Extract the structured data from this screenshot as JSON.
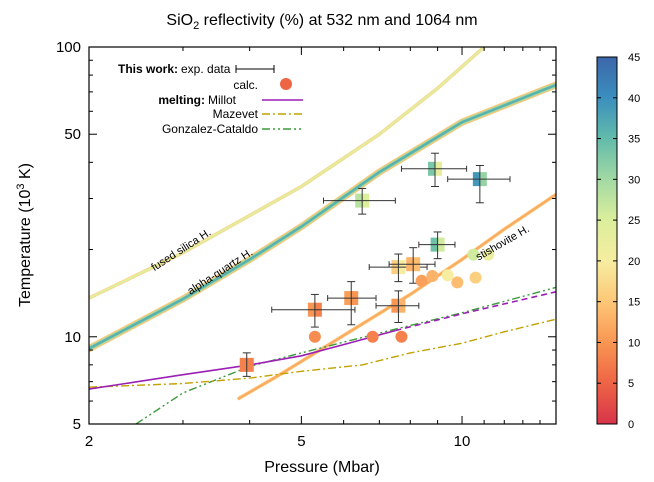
{
  "chart_data": {
    "type": "scatter",
    "title_parts": {
      "pre": "SiO",
      "sub": "2",
      "post": " reflectivity (%) at 532 nm and 1064 nm"
    },
    "xlabel": "Pressure (Mbar)",
    "ylabel_parts": {
      "pre": "Temperature (10",
      "sup": "3",
      "post": " K)"
    },
    "x_scale": "log",
    "y_scale": "log",
    "xlim": [
      2,
      15
    ],
    "ylim": [
      5,
      100
    ],
    "x_ticks": [
      2,
      5,
      10
    ],
    "x_tick_labels": [
      "2",
      "5",
      "10"
    ],
    "y_ticks": [
      5,
      10,
      50,
      100
    ],
    "y_tick_labels": [
      "5",
      "10",
      "50",
      "100"
    ],
    "colorbar": {
      "min": 0,
      "max": 45,
      "ticks": [
        0,
        5,
        10,
        15,
        20,
        25,
        30,
        35,
        40,
        45
      ],
      "tick_labels": [
        "0",
        "5",
        "10",
        "15",
        "20",
        "25",
        "30",
        "35",
        "40",
        "45"
      ],
      "stops": [
        "#d7344a",
        "#ee6445",
        "#f99653",
        "#fdc777",
        "#f6eda0",
        "#dbef9c",
        "#a2d9a4",
        "#62bbab",
        "#3b8fbe",
        "#3c67aa"
      ]
    },
    "legend": {
      "this_work": "This work:",
      "exp": "exp. data",
      "calc": "calc.",
      "melting": "melting:",
      "millot": "Millot",
      "mazevet": "Mazevet",
      "gonzalez": "Gonzalez-Cataldo",
      "placement": "top-left"
    },
    "hugoniots": [
      {
        "label": "fused silica H.",
        "color_value": 24,
        "points": [
          [
            2,
            13.6
          ],
          [
            3,
            19.5
          ],
          [
            5,
            33
          ],
          [
            7,
            50
          ],
          [
            9,
            72
          ],
          [
            11,
            100
          ]
        ]
      },
      {
        "label": "alpha-quartz H.",
        "color_value": 36,
        "points": [
          [
            2,
            9.1
          ],
          [
            3,
            13.5
          ],
          [
            4,
            18.5
          ],
          [
            5,
            24
          ],
          [
            7,
            37
          ],
          [
            10,
            55
          ],
          [
            15,
            74
          ]
        ]
      },
      {
        "label": "stishovite H.",
        "color_value": 12,
        "points": [
          [
            3.8,
            6.1
          ],
          [
            4.5,
            7.3
          ],
          [
            6,
            10.1
          ],
          [
            8,
            14
          ],
          [
            10,
            18.5
          ],
          [
            12,
            23.5
          ],
          [
            15,
            31
          ]
        ]
      }
    ],
    "melting_curves": {
      "millot": {
        "color": "#9b1fb5",
        "points": [
          [
            2,
            6.6
          ],
          [
            3,
            7.4
          ],
          [
            4,
            8.0
          ],
          [
            5,
            8.6
          ],
          [
            6,
            9.4
          ],
          [
            7.5,
            10.5
          ],
          [
            10,
            12.0
          ],
          [
            15,
            14.3
          ]
        ]
      },
      "mazevet": {
        "color": "#c2a100",
        "points": [
          [
            2,
            6.7
          ],
          [
            3,
            6.9
          ],
          [
            4,
            7.2
          ],
          [
            5,
            7.6
          ],
          [
            6.5,
            8.0
          ],
          [
            8,
            8.8
          ],
          [
            10,
            9.5
          ],
          [
            12,
            10.4
          ],
          [
            15,
            11.5
          ]
        ]
      },
      "gonzalez": {
        "color": "#3b9a3b",
        "points": [
          [
            2.45,
            5
          ],
          [
            3,
            6.4
          ],
          [
            4,
            7.9
          ],
          [
            5,
            8.8
          ],
          [
            7,
            10.3
          ],
          [
            10,
            12.1
          ],
          [
            15,
            14.8
          ]
        ]
      }
    },
    "exp_data": [
      {
        "p": 3.95,
        "t": 8.0,
        "xerr": [
          3.95,
          3.95
        ],
        "yerr": [
          7.3,
          8.8
        ],
        "r532": 8,
        "r1064": 8
      },
      {
        "p": 5.3,
        "t": 12.4,
        "xerr": [
          4.4,
          6.3
        ],
        "yerr": [
          10.8,
          14.0
        ],
        "r532": 10,
        "r1064": 8
      },
      {
        "p": 6.2,
        "t": 13.6,
        "xerr": [
          5.6,
          6.9
        ],
        "yerr": [
          11.0,
          15.5
        ],
        "r532": 11,
        "r1064": 10
      },
      {
        "p": 6.5,
        "t": 29.5,
        "xerr": [
          5.5,
          7.5
        ],
        "yerr": [
          26.5,
          32.5
        ],
        "r532": 28,
        "r1064": 25
      },
      {
        "p": 7.6,
        "t": 12.8,
        "xerr": [
          6.9,
          8.3
        ],
        "yerr": [
          11.2,
          14.4
        ],
        "r532": 10,
        "r1064": 13
      },
      {
        "p": 7.6,
        "t": 17.4,
        "xerr": [
          6.7,
          8.6
        ],
        "yerr": [
          15.5,
          19.3
        ],
        "r532": 16,
        "r1064": 20
      },
      {
        "p": 8.1,
        "t": 17.8,
        "xerr": [
          7.3,
          8.9
        ],
        "yerr": [
          15.3,
          20.3
        ],
        "r532": 13,
        "r1064": 14
      },
      {
        "p": 9.0,
        "t": 20.8,
        "xerr": [
          8.3,
          9.7
        ],
        "yerr": [
          18.6,
          23.0
        ],
        "r532": 34,
        "r1064": 26
      },
      {
        "p": 8.9,
        "t": 38.0,
        "xerr": [
          7.7,
          10.2
        ],
        "yerr": [
          33.0,
          43.0
        ],
        "r532": 33,
        "r1064": 23
      },
      {
        "p": 10.8,
        "t": 35.0,
        "xerr": [
          9.4,
          12.3
        ],
        "yerr": [
          29.0,
          39.0
        ],
        "r532": 39,
        "r1064": 31
      }
    ],
    "calc_data": [
      {
        "p": 5.3,
        "t": 10.0,
        "r": 9
      },
      {
        "p": 6.8,
        "t": 10.0,
        "r": 8
      },
      {
        "p": 7.7,
        "t": 10.0,
        "r": 8
      },
      {
        "p": 8.4,
        "t": 15.6,
        "r": 11
      },
      {
        "p": 8.8,
        "t": 16.2,
        "r": 13
      },
      {
        "p": 9.8,
        "t": 15.4,
        "r": 14
      },
      {
        "p": 10.6,
        "t": 16.0,
        "r": 16
      },
      {
        "p": 9.4,
        "t": 16.3,
        "r": 20
      },
      {
        "p": 10.5,
        "t": 19.2,
        "r": 26
      },
      {
        "p": 11.2,
        "t": 19.2,
        "r": 22
      }
    ],
    "curve_label_text": {
      "fused": "fused silica H.",
      "alpha": "alpha-quartz H.",
      "stish": "stishovite H."
    }
  }
}
